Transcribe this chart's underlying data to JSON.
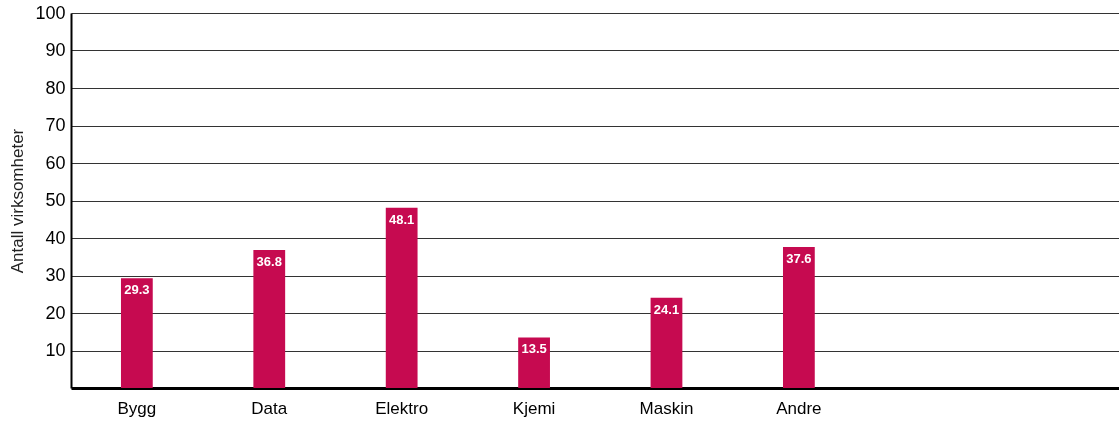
{
  "chart_data": {
    "type": "bar",
    "ylabel": "Antall virksomheter",
    "categories": [
      "Bygg",
      "Data",
      "Elektro",
      "Kjemi",
      "Maskin",
      "Andre",
      null,
      null
    ],
    "values": [
      29.3,
      36.8,
      48.1,
      13.5,
      24.1,
      37.6,
      null,
      null
    ],
    "color": "#c60a50",
    "ylim": [
      0,
      100
    ],
    "yticks": [
      10,
      20,
      30,
      40,
      50,
      60,
      70,
      80,
      90,
      100
    ],
    "grid": "y",
    "data_labels": true
  }
}
